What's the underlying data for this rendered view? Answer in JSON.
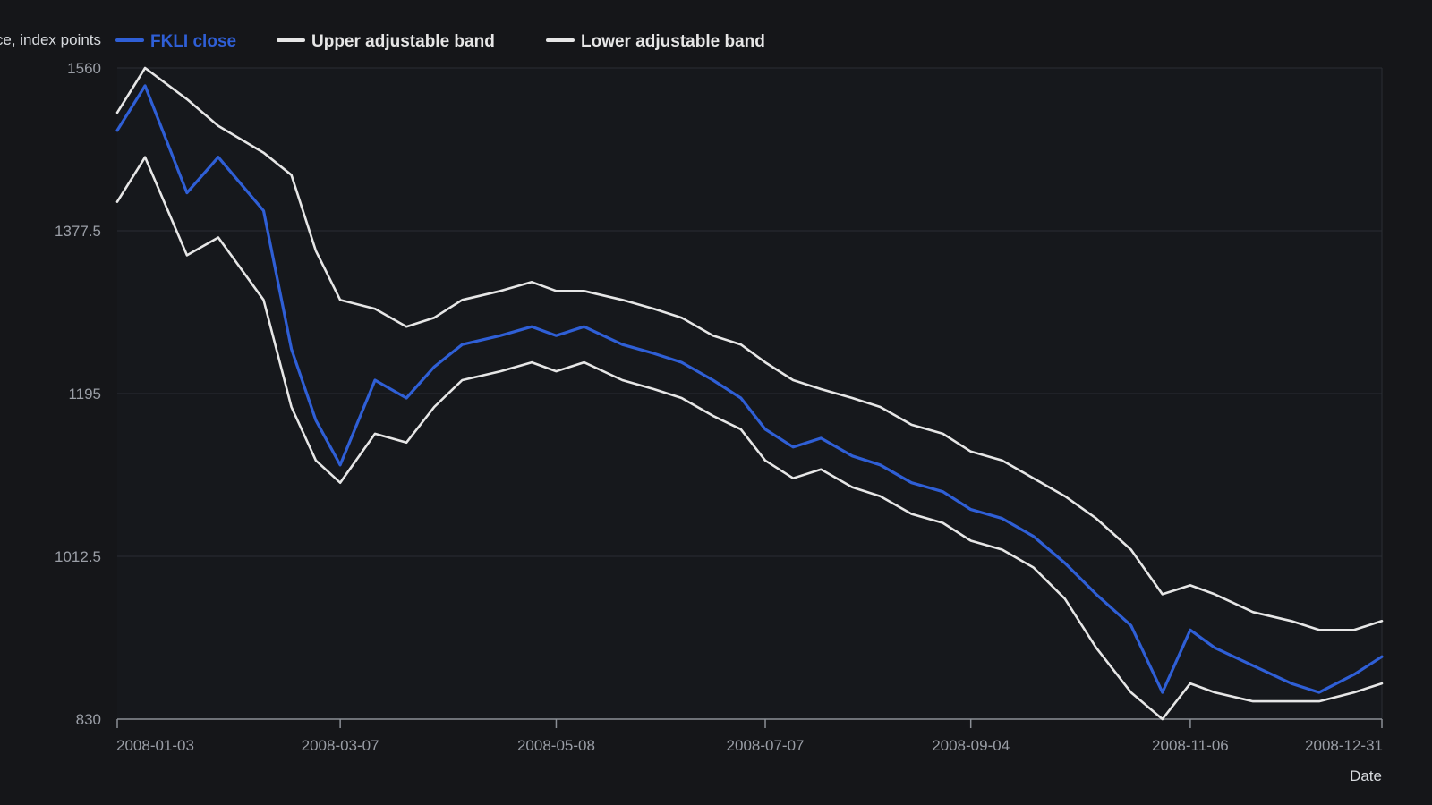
{
  "chart_data": {
    "type": "line",
    "ylabel": "Price, index points",
    "xlabel": "Date",
    "ylim": [
      830,
      1560
    ],
    "y_ticks": [
      "830",
      "1012.5",
      "1195",
      "1377.5",
      "1560"
    ],
    "x_ticks": [
      "2008-01-03",
      "2008-03-07",
      "2008-05-08",
      "2008-07-07",
      "2008-09-04",
      "2008-11-06",
      "2008-12-31"
    ],
    "x": [
      "2008-01-03",
      "2008-01-11",
      "2008-01-23",
      "2008-02-01",
      "2008-02-14",
      "2008-02-22",
      "2008-02-29",
      "2008-03-07",
      "2008-03-17",
      "2008-03-26",
      "2008-04-03",
      "2008-04-11",
      "2008-04-22",
      "2008-05-01",
      "2008-05-08",
      "2008-05-16",
      "2008-05-27",
      "2008-06-05",
      "2008-06-13",
      "2008-06-22",
      "2008-06-30",
      "2008-07-07",
      "2008-07-15",
      "2008-07-23",
      "2008-08-01",
      "2008-08-09",
      "2008-08-18",
      "2008-08-27",
      "2008-09-04",
      "2008-09-13",
      "2008-09-22",
      "2008-10-01",
      "2008-10-10",
      "2008-10-20",
      "2008-10-29",
      "2008-11-06",
      "2008-11-13",
      "2008-11-24",
      "2008-12-05",
      "2008-12-13",
      "2008-12-23",
      "2008-12-31"
    ],
    "series": [
      {
        "name": "FKLI close",
        "color": "#2f5fd6",
        "values": [
          1490,
          1540,
          1420,
          1460,
          1400,
          1245,
          1165,
          1115,
          1210,
          1190,
          1225,
          1250,
          1260,
          1270,
          1260,
          1270,
          1250,
          1240,
          1230,
          1210,
          1190,
          1155,
          1135,
          1145,
          1125,
          1115,
          1095,
          1085,
          1065,
          1055,
          1035,
          1005,
          970,
          935,
          860,
          930,
          910,
          890,
          870,
          860,
          880,
          900
        ]
      },
      {
        "name": "Upper adjustable band",
        "color": "#e6e6e6",
        "values": [
          1510,
          1560,
          1525,
          1495,
          1465,
          1440,
          1355,
          1300,
          1290,
          1270,
          1280,
          1300,
          1310,
          1320,
          1310,
          1310,
          1300,
          1290,
          1280,
          1260,
          1250,
          1230,
          1210,
          1200,
          1190,
          1180,
          1160,
          1150,
          1130,
          1120,
          1100,
          1080,
          1055,
          1020,
          970,
          980,
          970,
          950,
          940,
          930,
          930,
          940
        ]
      },
      {
        "name": "Lower adjustable band",
        "color": "#e6e6e6",
        "values": [
          1410,
          1460,
          1350,
          1370,
          1300,
          1180,
          1120,
          1095,
          1150,
          1140,
          1180,
          1210,
          1220,
          1230,
          1220,
          1230,
          1210,
          1200,
          1190,
          1170,
          1155,
          1120,
          1100,
          1110,
          1090,
          1080,
          1060,
          1050,
          1030,
          1020,
          1000,
          965,
          910,
          860,
          830,
          870,
          860,
          850,
          850,
          850,
          860,
          870
        ]
      }
    ],
    "legend": [
      "FKLI close",
      "Upper adjustable band",
      "Lower adjustable band"
    ],
    "grid": true,
    "legend_position": "top-left"
  },
  "colors": {
    "background": "#151619",
    "plot_background": "#16181c",
    "gridline": "#2a2d33",
    "axis": "#8b8f96",
    "fkli": "#2f5fd6",
    "band": "#e6e6e6"
  }
}
